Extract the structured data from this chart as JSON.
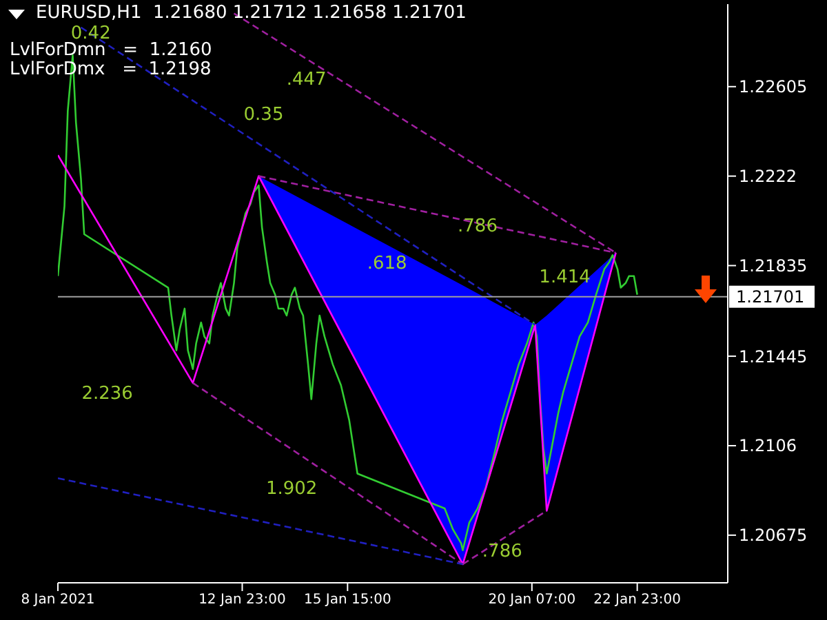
{
  "chart_data": {
    "type": "line",
    "title": "EURUSD,H1  1.21680 1.21712 1.21658 1.21701",
    "annotations": [
      "LvlForDmn   =  1.2160",
      "LvlForDmx   =  1.2198",
      ".447",
      "0.35",
      "0.42",
      ".786",
      ".618",
      "1.414",
      "2.236",
      "1.902",
      ".786"
    ],
    "xlim": [
      "2021-01-08T07:00",
      "2021-01-25T06:00"
    ],
    "ylim": [
      1.2047,
      1.2296
    ],
    "xticks": [
      {
        "value": "2021-01-08T07:00",
        "label": "8 Jan 2021"
      },
      {
        "value": "2021-01-12T23:00",
        "label": "12 Jan 23:00"
      },
      {
        "value": "2021-01-15T15:00",
        "label": "15 Jan 15:00"
      },
      {
        "value": "2021-01-20T07:00",
        "label": "20 Jan 07:00"
      },
      {
        "value": "2021-01-22T23:00",
        "label": "22 Jan 23:00"
      }
    ],
    "yticks": [
      1.20675,
      1.2106,
      1.21445,
      1.21835,
      1.2222,
      1.22605
    ],
    "ref_lines": [
      {
        "axis": "y",
        "value": 1.21701,
        "label": "1.21701",
        "color": "#a0a0a0"
      }
    ],
    "grid": false,
    "marker": "none",
    "series": [
      {
        "color": "#32cd32",
        "x": [
          "2021-01-08T07:00",
          "2021-01-08T11:00",
          "2021-01-08T13:00",
          "2021-01-08T16:00",
          "2021-01-08T18:00",
          "2021-01-08T21:00",
          "2021-01-08T23:00",
          "2021-01-11T02:00",
          "2021-01-11T04:00",
          "2021-01-11T07:00",
          "2021-01-11T09:00",
          "2021-01-11T12:00",
          "2021-01-11T14:00",
          "2021-01-11T17:00",
          "2021-01-11T19:00",
          "2021-01-11T22:00",
          "2021-01-12T00:00",
          "2021-01-12T03:00",
          "2021-01-12T05:00",
          "2021-01-12T08:00",
          "2021-01-12T10:00",
          "2021-01-12T13:00",
          "2021-01-12T15:00",
          "2021-01-12T18:00",
          "2021-01-12T20:00",
          "2021-01-12T23:00",
          "2021-01-13T01:00",
          "2021-01-13T04:00",
          "2021-01-13T06:00",
          "2021-01-13T09:00",
          "2021-01-13T11:00",
          "2021-01-13T14:00",
          "2021-01-13T16:00",
          "2021-01-13T19:00",
          "2021-01-13T21:00",
          "2021-01-14T00:00",
          "2021-01-14T02:00",
          "2021-01-14T05:00",
          "2021-01-14T07:00",
          "2021-01-14T10:00",
          "2021-01-14T12:00",
          "2021-01-14T15:00",
          "2021-01-14T17:00",
          "2021-01-14T20:00",
          "2021-01-14T22:00",
          "2021-01-15T01:00",
          "2021-01-15T06:00",
          "2021-01-15T11:00",
          "2021-01-15T16:00",
          "2021-01-15T21:00",
          "2021-01-18T02:00",
          "2021-01-18T07:00",
          "2021-01-18T12:00",
          "2021-01-18T13:00",
          "2021-01-18T17:00",
          "2021-01-18T22:00",
          "2021-01-19T03:00",
          "2021-01-19T08:00",
          "2021-01-19T13:00",
          "2021-01-19T18:00",
          "2021-01-19T23:00",
          "2021-01-20T04:00",
          "2021-01-20T08:00",
          "2021-01-20T10:00",
          "2021-01-20T12:00",
          "2021-01-20T14:00",
          "2021-01-20T16:00",
          "2021-01-20T19:00",
          "2021-01-20T23:00",
          "2021-01-21T02:00",
          "2021-01-21T07:00",
          "2021-01-21T12:00",
          "2021-01-21T17:00",
          "2021-01-21T22:00",
          "2021-01-22T03:00",
          "2021-01-22T06:00",
          "2021-01-22T08:00",
          "2021-01-22T11:00",
          "2021-01-22T13:00",
          "2021-01-22T16:00",
          "2021-01-22T18:00",
          "2021-01-22T21:00",
          "2021-01-22T23:00"
        ],
        "values": [
          1.2179,
          1.2209,
          1.225,
          1.2274,
          1.2245,
          1.2221,
          1.2197,
          1.2174,
          1.2162,
          1.2147,
          1.2156,
          1.2165,
          1.2147,
          1.2139,
          1.215,
          1.2159,
          1.2153,
          1.215,
          1.2162,
          1.2171,
          1.2176,
          1.2165,
          1.2162,
          1.2176,
          1.2191,
          1.22,
          1.2206,
          1.221,
          1.2215,
          1.2218,
          1.22,
          1.2185,
          1.2176,
          1.2171,
          1.2165,
          1.2165,
          1.2162,
          1.2171,
          1.2174,
          1.2165,
          1.2162,
          1.2141,
          1.2126,
          1.215,
          1.2162,
          1.2153,
          1.2141,
          1.2132,
          1.2117,
          1.2094,
          1.2079,
          1.207,
          1.2064,
          1.2061,
          1.2073,
          1.2079,
          1.2088,
          1.2102,
          1.2117,
          1.2129,
          1.2141,
          1.215,
          1.2159,
          1.2153,
          1.2126,
          1.2105,
          1.2094,
          1.2105,
          1.212,
          1.2129,
          1.2141,
          1.2153,
          1.2159,
          1.2171,
          1.2182,
          1.2185,
          1.2188,
          1.2182,
          1.2174,
          1.2176,
          1.2179,
          1.2179,
          1.2171
        ]
      },
      {
        "color": "#ff00ff",
        "x": [
          "2021-01-08T07:00",
          "2021-01-11T17:00",
          "2021-01-13T09:00",
          "2021-01-18T13:00",
          "2021-01-20T09:00",
          "2021-01-20T16:00",
          "2021-01-22T10:00"
        ],
        "values": [
          1.2231,
          1.2133,
          1.2222,
          1.2055,
          1.2158,
          1.2078,
          1.2189
        ],
        "lower": [
          null,
          null,
          1.2222,
          1.2055,
          1.2158,
          1.2078,
          1.2189
        ],
        "upper": [
          null,
          null,
          1.2222,
          1.2175,
          1.2158,
          1.2162,
          1.2189
        ]
      },
      {
        "color": "#a020a0",
        "line_style": "dashed",
        "x": [
          "2021-01-12T18:00",
          "2021-01-22T10:00"
        ],
        "values": [
          1.2292,
          1.2189
        ]
      },
      {
        "color": "#a020a0",
        "line_style": "dashed",
        "x": [
          "2021-01-13T09:00",
          "2021-01-22T10:00"
        ],
        "values": [
          1.2222,
          1.2189
        ]
      },
      {
        "color": "#a020a0",
        "line_style": "dashed",
        "x": [
          "2021-01-11T17:00",
          "2021-01-18T13:00"
        ],
        "values": [
          1.2133,
          1.2055
        ]
      },
      {
        "color": "#a020a0",
        "line_style": "dashed",
        "x": [
          "2021-01-18T13:00",
          "2021-01-20T16:00"
        ],
        "values": [
          1.2055,
          1.2078
        ]
      },
      {
        "color": "#2020c0",
        "line_style": "dashed",
        "x": [
          "2021-01-08T21:00",
          "2021-01-20T09:00"
        ],
        "values": [
          1.2286,
          1.2158
        ]
      },
      {
        "color": "#2020c0",
        "line_style": "dashed",
        "x": [
          "2021-01-08T07:00",
          "2021-01-18T13:00"
        ],
        "values": [
          1.2092,
          1.2055
        ]
      }
    ]
  }
}
